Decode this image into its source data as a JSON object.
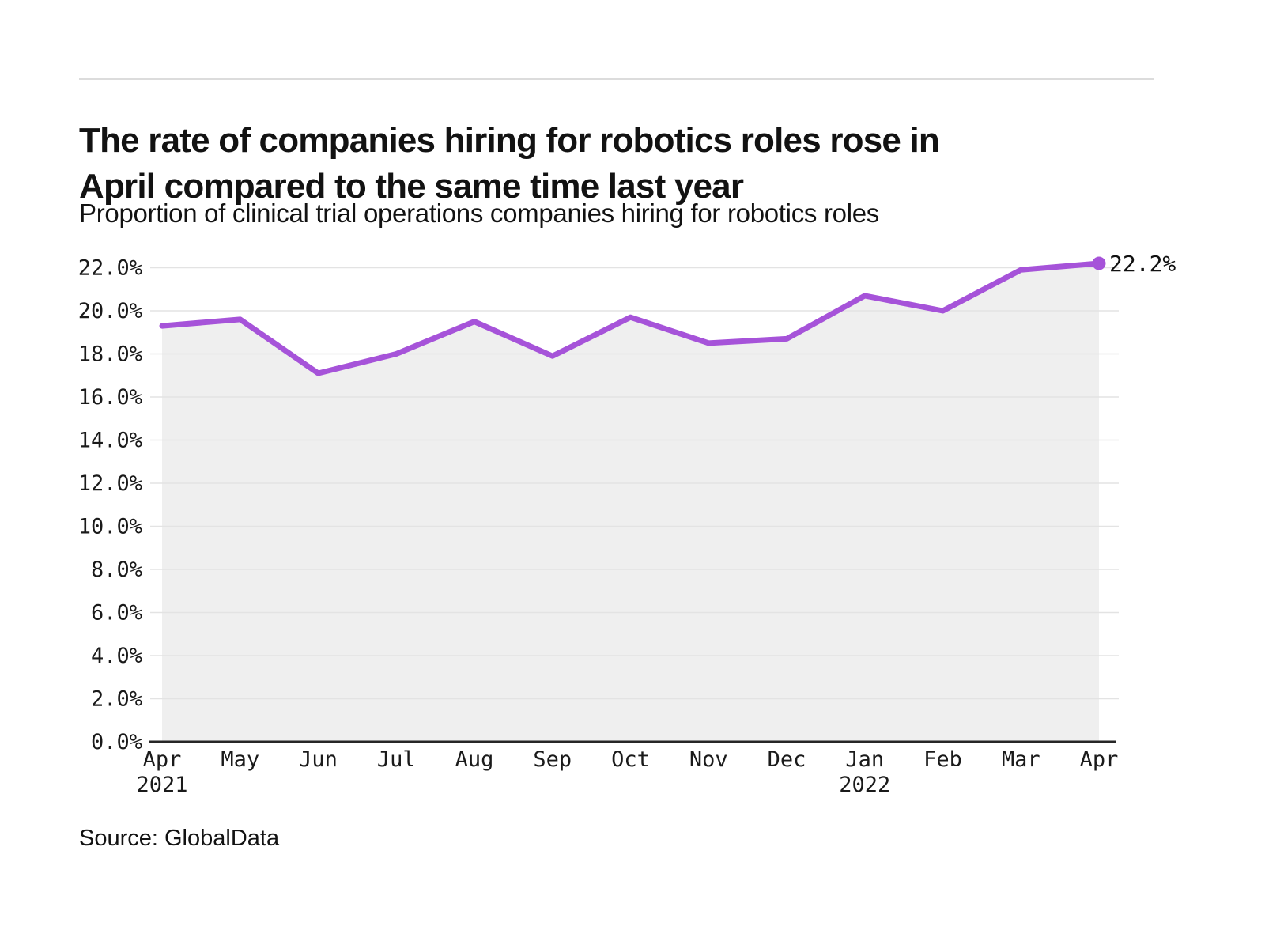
{
  "header": {
    "title_line1": "The rate of companies hiring for robotics roles rose in",
    "title_line2": "April compared to the same time last year",
    "subtitle": "Proportion of clinical trial operations companies hiring for robotics roles"
  },
  "source": {
    "label": "Source: GlobalData"
  },
  "chart_data": {
    "type": "line",
    "title": "The rate of companies hiring for robotics roles rose in April compared to the same time last year",
    "subtitle": "Proportion of clinical trial operations companies hiring for robotics roles",
    "categories": [
      "Apr",
      "May",
      "Jun",
      "Jul",
      "Aug",
      "Sep",
      "Oct",
      "Nov",
      "Dec",
      "Jan",
      "Feb",
      "Mar",
      "Apr"
    ],
    "x_year_labels": [
      {
        "index": 0,
        "label": "2021"
      },
      {
        "index": 9,
        "label": "2022"
      }
    ],
    "values": [
      19.3,
      19.6,
      17.1,
      18.0,
      19.5,
      17.9,
      19.7,
      18.5,
      18.7,
      20.7,
      20.0,
      21.9,
      22.2
    ],
    "unit": "%",
    "ylim": [
      0,
      22
    ],
    "ytick_step": 2,
    "ytick_labels": [
      "22.0%",
      "20.0%",
      "18.0%",
      "16.0%",
      "14.0%",
      "12.0%",
      "10.0%",
      "8.0%",
      "6.0%",
      "4.0%",
      "2.0%",
      "0.0%"
    ],
    "end_label": "22.2%",
    "grid": true,
    "legend": "none",
    "line_color": "#a653d9",
    "area_fill_color": "#efefef",
    "gridline_color": "#e3e3e3",
    "axis_color": "#262626"
  }
}
